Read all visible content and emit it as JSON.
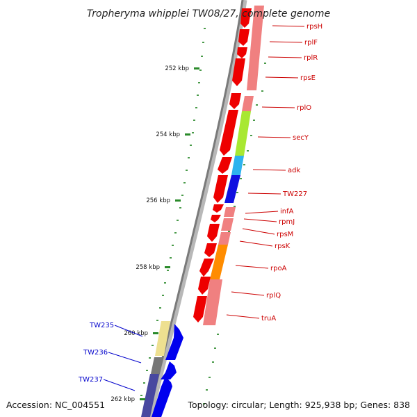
{
  "title": "Tropheryma whipplei TW08/27, complete genome",
  "accession": "Accession: NC_004551",
  "summary": "Topology: circular; Length: 925,938 bp; Genes: 838",
  "kbp_labels": [
    "252 kbp",
    "254 kbp",
    "256 kbp",
    "258 kbp",
    "260 kbp",
    "262 kbp"
  ],
  "genes": [
    {
      "name": "rpsH",
      "color": "#cc0000"
    },
    {
      "name": "rplF",
      "color": "#cc0000"
    },
    {
      "name": "rplR",
      "color": "#cc0000"
    },
    {
      "name": "rpsE",
      "color": "#cc0000"
    },
    {
      "name": "rplO",
      "color": "#cc0000"
    },
    {
      "name": "secY",
      "color": "#cc0000"
    },
    {
      "name": "adk",
      "color": "#cc0000"
    },
    {
      "name": "TW227",
      "color": "#cc0000"
    },
    {
      "name": "infA",
      "color": "#cc0000"
    },
    {
      "name": "rpmJ",
      "color": "#cc0000"
    },
    {
      "name": "rpsM",
      "color": "#cc0000"
    },
    {
      "name": "rpsK",
      "color": "#cc0000"
    },
    {
      "name": "rpoA",
      "color": "#cc0000"
    },
    {
      "name": "rplQ",
      "color": "#cc0000"
    },
    {
      "name": "truA",
      "color": "#cc0000"
    },
    {
      "name": "TW235",
      "color": "#0000cc"
    },
    {
      "name": "TW236",
      "color": "#0000cc"
    },
    {
      "name": "TW237",
      "color": "#0000cc"
    }
  ]
}
